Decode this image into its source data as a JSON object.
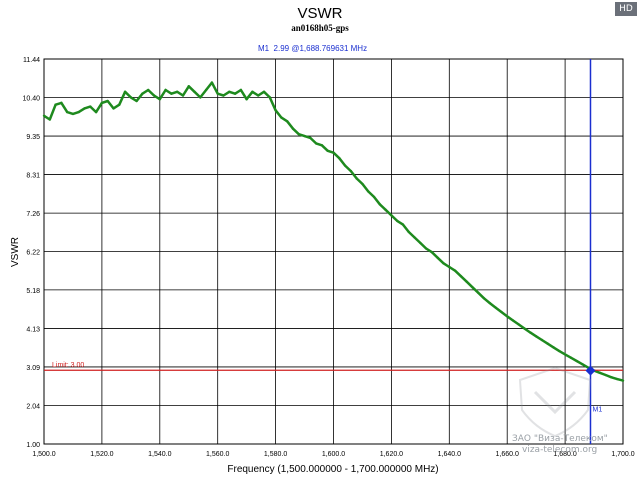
{
  "hd_badge": "HD",
  "watermark": {
    "line1": "ЗАО \"Виза-Телеком\"",
    "line2": "viza-telecom.org"
  },
  "chart_data": {
    "type": "line",
    "title": "VSWR",
    "subtitle": "an0168h05-gps",
    "xlabel": "Frequency (1,500.000000 - 1,700.000000 MHz)",
    "ylabel": "VSWR",
    "xlim": [
      1500,
      1700
    ],
    "ylim": [
      1.0,
      11.44
    ],
    "x_ticks": [
      1500,
      1520,
      1540,
      1560,
      1580,
      1600,
      1620,
      1640,
      1660,
      1680,
      1700
    ],
    "x_tick_labels": [
      "1,500.0",
      "1,520.0",
      "1,540.0",
      "1,560.0",
      "1,580.0",
      "1,600.0",
      "1,620.0",
      "1,640.0",
      "1,660.0",
      "1,680.0",
      "1,700.0"
    ],
    "y_ticks": [
      1.0,
      2.04,
      3.09,
      4.13,
      5.18,
      6.22,
      7.26,
      8.31,
      9.35,
      10.4,
      11.44
    ],
    "y_tick_labels": [
      "1.00",
      "2.04",
      "3.09",
      "4.13",
      "5.18",
      "6.22",
      "7.26",
      "8.31",
      "9.35",
      "10.40",
      "11.44"
    ],
    "grid": true,
    "series": [
      {
        "color": "#1e8a1e",
        "x": [
          1500,
          1502,
          1504,
          1506,
          1508,
          1510,
          1512,
          1514,
          1516,
          1518,
          1520,
          1522,
          1524,
          1526,
          1528,
          1530,
          1532,
          1534,
          1536,
          1538,
          1540,
          1542,
          1544,
          1546,
          1548,
          1550,
          1552,
          1554,
          1556,
          1558,
          1560,
          1562,
          1564,
          1566,
          1568,
          1570,
          1572,
          1574,
          1576,
          1578,
          1580,
          1582,
          1584,
          1586,
          1588,
          1590,
          1592,
          1594,
          1596,
          1598,
          1600,
          1602,
          1604,
          1606,
          1608,
          1610,
          1612,
          1614,
          1616,
          1618,
          1620,
          1622,
          1624,
          1626,
          1628,
          1630,
          1632,
          1634,
          1636,
          1638,
          1640,
          1642,
          1644,
          1646,
          1648,
          1650,
          1652,
          1654,
          1656,
          1658,
          1660,
          1662,
          1664,
          1666,
          1668,
          1670,
          1672,
          1674,
          1676,
          1678,
          1680,
          1682,
          1684,
          1686,
          1688,
          1690,
          1692,
          1694,
          1696,
          1698,
          1700
        ],
        "y": [
          9.9,
          9.8,
          10.2,
          10.25,
          10.0,
          9.95,
          10.0,
          10.1,
          10.15,
          10.0,
          10.25,
          10.3,
          10.1,
          10.2,
          10.55,
          10.4,
          10.3,
          10.5,
          10.6,
          10.45,
          10.35,
          10.6,
          10.5,
          10.55,
          10.45,
          10.7,
          10.55,
          10.4,
          10.6,
          10.8,
          10.5,
          10.45,
          10.55,
          10.5,
          10.6,
          10.35,
          10.55,
          10.45,
          10.55,
          10.4,
          10.05,
          9.85,
          9.75,
          9.55,
          9.4,
          9.35,
          9.3,
          9.15,
          9.1,
          8.95,
          8.9,
          8.75,
          8.55,
          8.4,
          8.2,
          8.05,
          7.85,
          7.7,
          7.5,
          7.35,
          7.2,
          7.05,
          6.95,
          6.75,
          6.6,
          6.45,
          6.3,
          6.2,
          6.05,
          5.9,
          5.8,
          5.7,
          5.55,
          5.4,
          5.25,
          5.1,
          4.95,
          4.82,
          4.7,
          4.58,
          4.46,
          4.35,
          4.24,
          4.13,
          4.02,
          3.92,
          3.82,
          3.72,
          3.62,
          3.52,
          3.43,
          3.34,
          3.25,
          3.16,
          3.07,
          2.99,
          2.93,
          2.87,
          2.81,
          2.76,
          2.72
        ]
      }
    ],
    "limit_line": {
      "label": "Limit: 3.00",
      "value": 3.0,
      "color": "#d02020"
    },
    "marker": {
      "label": "M1",
      "readout": "M1  2.99 @1,688.769631 MHz",
      "x": 1688.77,
      "y": 2.99,
      "color": "#1a2fd0"
    }
  }
}
